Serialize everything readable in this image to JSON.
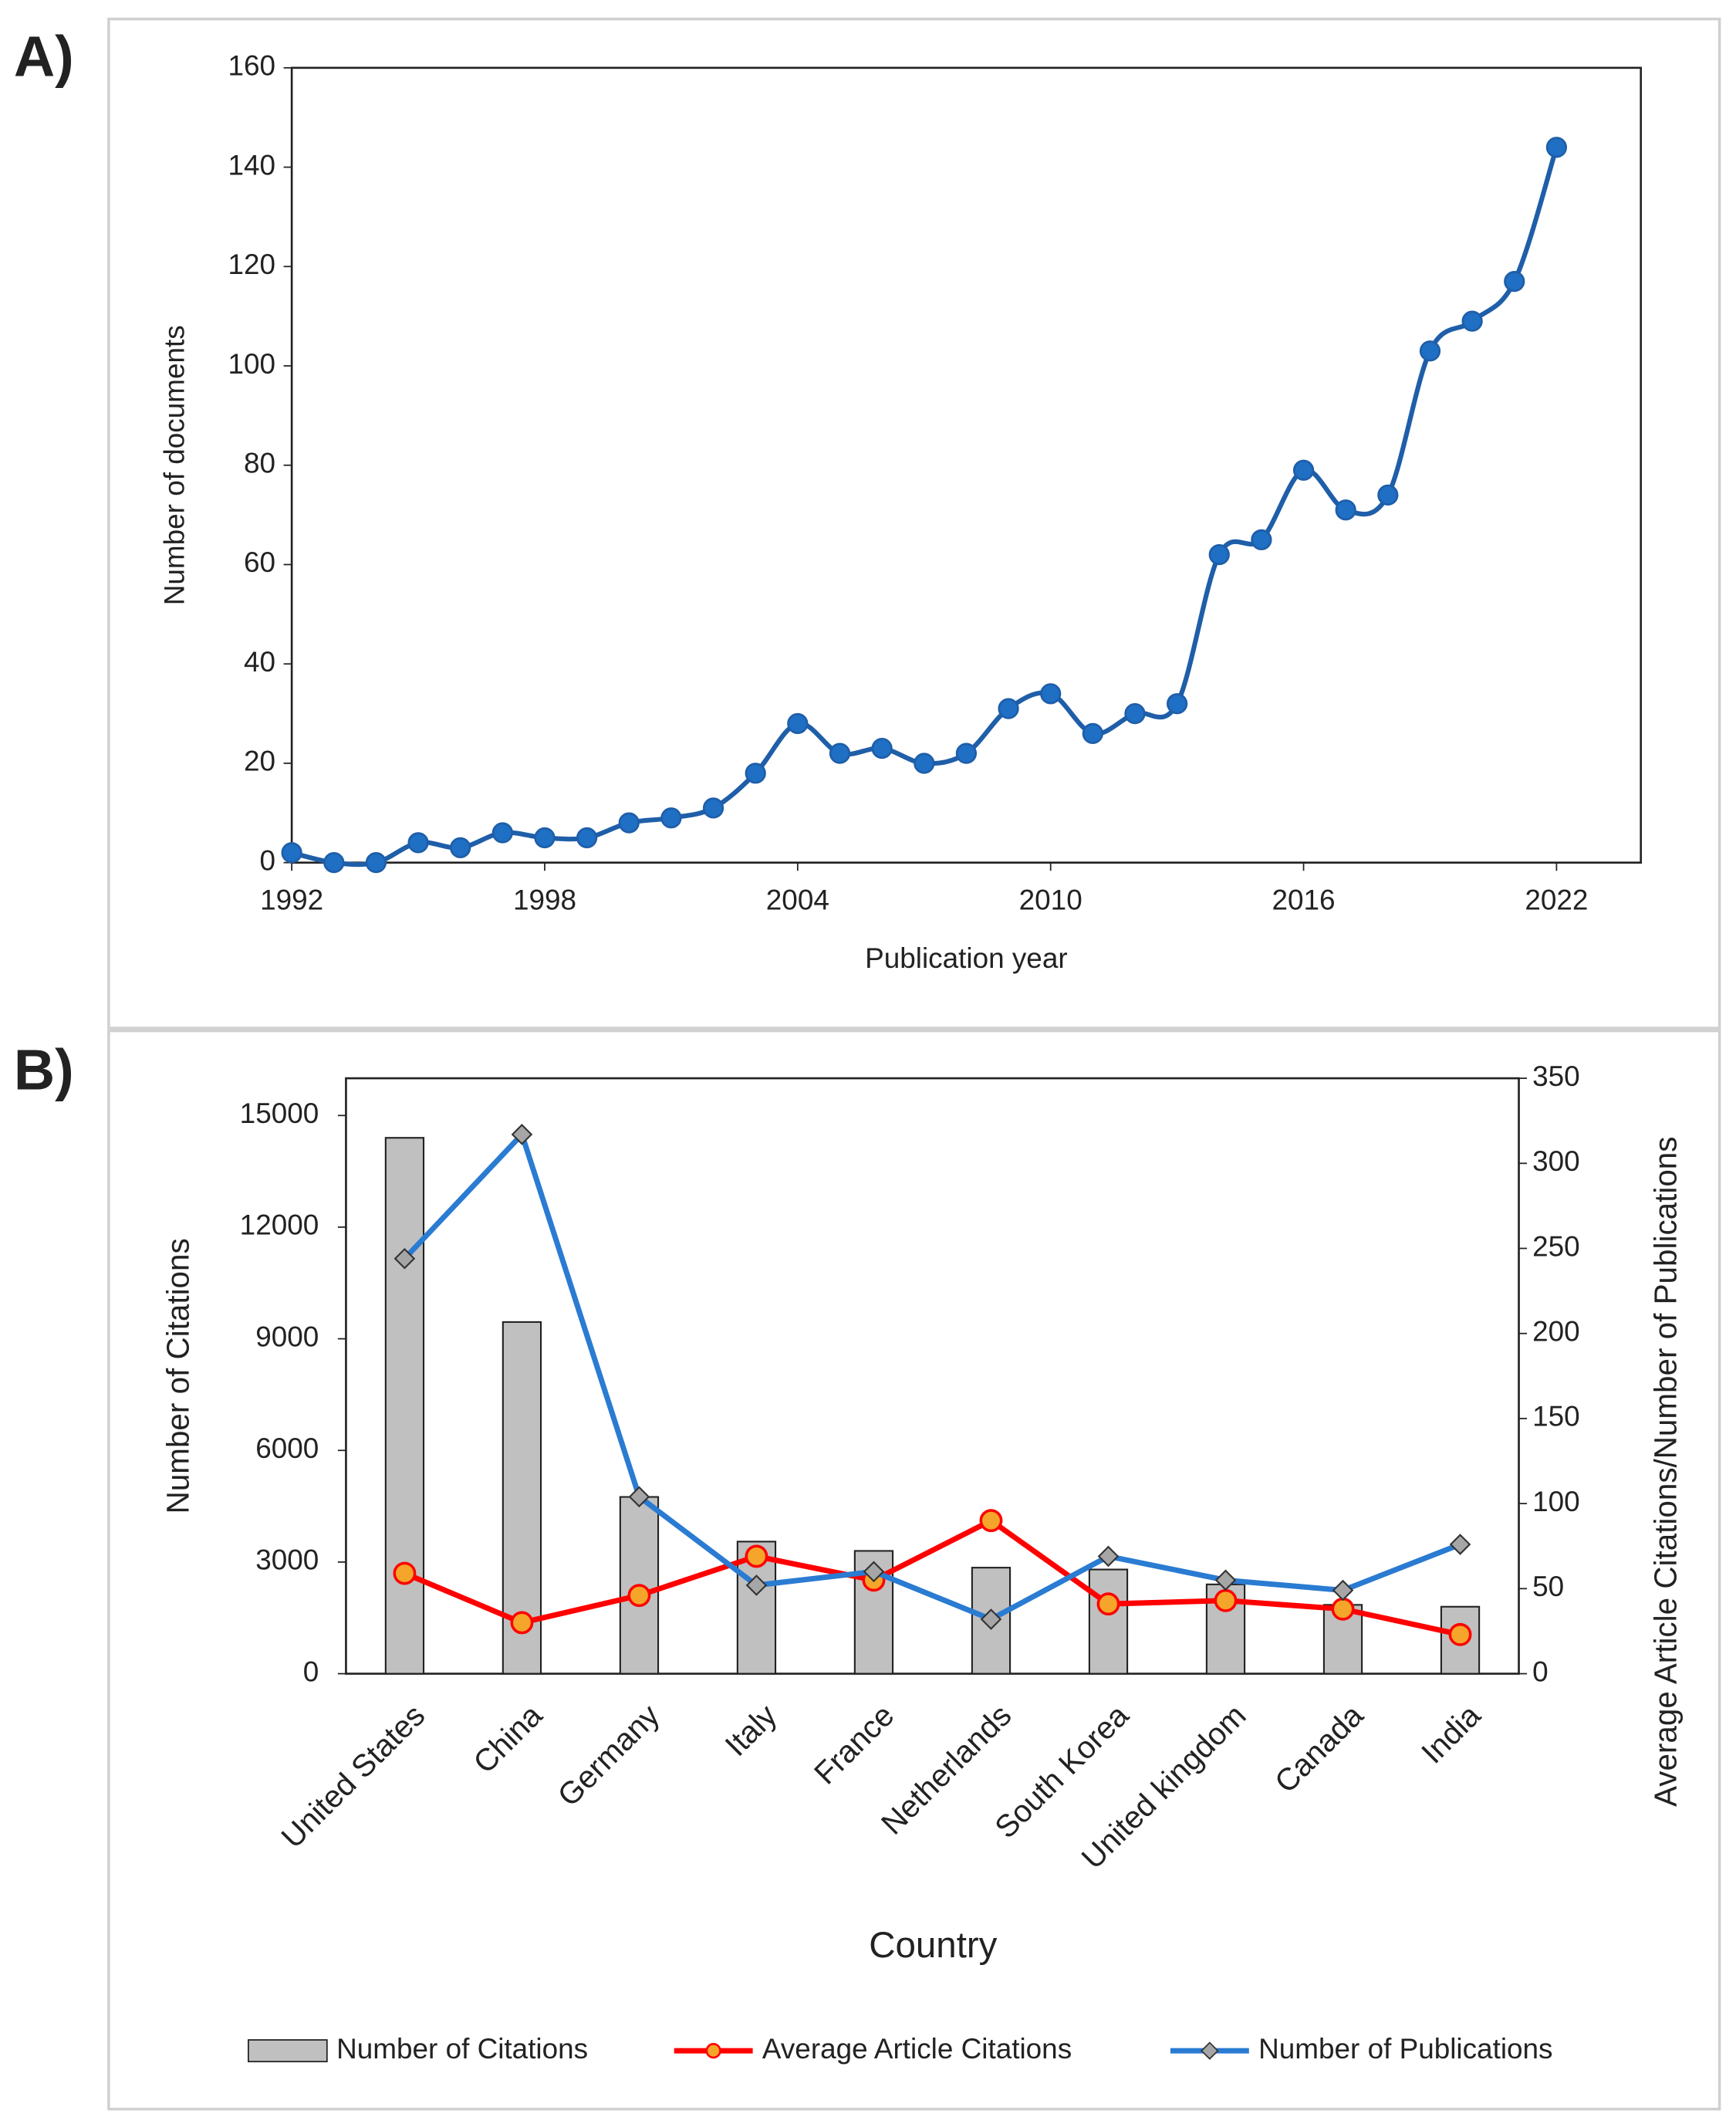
{
  "chart_data": [
    {
      "type": "line",
      "label": "A)",
      "x_label": "Publication year",
      "y_label": "Number of documents",
      "x": [
        1992,
        1993,
        1994,
        1995,
        1996,
        1997,
        1998,
        1999,
        2000,
        2001,
        2002,
        2003,
        2004,
        2005,
        2006,
        2007,
        2008,
        2009,
        2010,
        2011,
        2012,
        2013,
        2014,
        2015,
        2016,
        2017,
        2018,
        2019,
        2020,
        2021,
        2022
      ],
      "values": [
        2,
        0,
        0,
        4,
        3,
        6,
        5,
        5,
        8,
        9,
        11,
        18,
        28,
        22,
        23,
        20,
        22,
        31,
        34,
        26,
        30,
        32,
        62,
        65,
        79,
        71,
        74,
        103,
        109,
        117,
        144
      ],
      "color": "#1f5ea8",
      "marker_color": "#1f6fc4",
      "xlim": [
        1992,
        2024
      ],
      "xticks": [
        1992,
        1998,
        2004,
        2010,
        2016,
        2022
      ],
      "ylim": [
        0,
        160
      ],
      "yticks": [
        0,
        20,
        40,
        60,
        80,
        100,
        120,
        140,
        160
      ],
      "smooth": true
    },
    {
      "type": "bar",
      "label": "B)",
      "x_label": "Country",
      "y_label": "Number of Citations",
      "y2_label": "Average Article Citations/Number of Publications",
      "categories": [
        "United States",
        "China",
        "Germany",
        "Italy",
        "France",
        "Netherlands",
        "South Korea",
        "United kingdom",
        "Canada",
        "India"
      ],
      "series": [
        {
          "name": "Number of Citations",
          "type": "bar",
          "color": "#c0c0c0",
          "values": [
            14400,
            9450,
            4750,
            3550,
            3300,
            2850,
            2800,
            2400,
            1850,
            1800
          ]
        },
        {
          "name": "Average Article Citations",
          "type": "line",
          "axis": "y2",
          "color": "#ff0000",
          "marker": "circle",
          "marker_color": "#f5a52a",
          "values": [
            59,
            30,
            46,
            69,
            55,
            90,
            41,
            43,
            38,
            23
          ]
        },
        {
          "name": "Number of Publications",
          "type": "line",
          "axis": "y2",
          "color": "#2a7bd2",
          "marker": "diamond",
          "marker_color": "#a6a6a6",
          "values": [
            244,
            317,
            104,
            52,
            60,
            32,
            69,
            55,
            49,
            76
          ]
        }
      ],
      "ylim": [
        0,
        16000
      ],
      "yticks": [
        0,
        3000,
        6000,
        9000,
        12000,
        15000
      ],
      "y2lim": [
        0,
        350
      ],
      "y2ticks": [
        0,
        50,
        100,
        150,
        200,
        250,
        300,
        350
      ],
      "legend": "bottom"
    }
  ]
}
